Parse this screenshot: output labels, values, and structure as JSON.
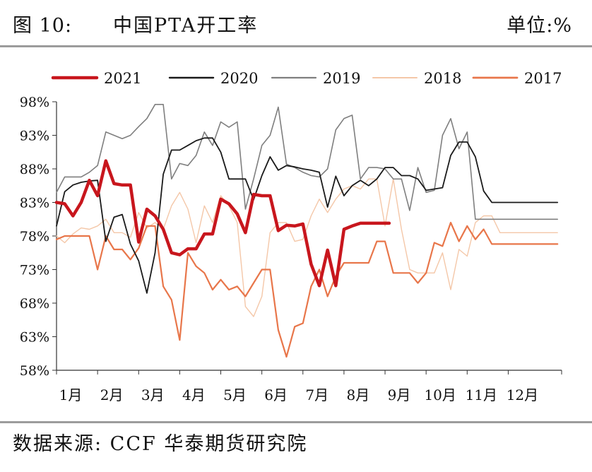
{
  "header": {
    "figure_no": "图 10:",
    "title": "中国PTA开工率",
    "unit": "单位:%"
  },
  "footer": {
    "source": "数据来源: CCF 华泰期货研究院"
  },
  "colors": {
    "2021": "#c8161d",
    "2020": "#1a1a1a",
    "2019": "#7f7f7f",
    "2018": "#f4c7a8",
    "2017": "#e8764a"
  },
  "chart_data": {
    "type": "line",
    "title": "中国PTA开工率",
    "ylabel": "",
    "xlabel": "",
    "ylim": [
      58,
      98
    ],
    "y_tick_labels": [
      "98%",
      "93%",
      "88%",
      "83%",
      "78%",
      "73%",
      "68%",
      "63%",
      "58%"
    ],
    "x_tick_labels": [
      "1月",
      "2月",
      "3月",
      "4月",
      "5月",
      "6月",
      "7月",
      "8月",
      "9月",
      "10月",
      "11月",
      "12月"
    ],
    "legend_position": "top",
    "grid": false,
    "x_domain": [
      1,
      13.3
    ],
    "series": [
      {
        "name": "2021",
        "x": [
          1.0,
          1.2,
          1.4,
          1.6,
          1.8,
          2.0,
          2.2,
          2.4,
          2.6,
          2.8,
          3.0,
          3.2,
          3.4,
          3.6,
          3.8,
          4.0,
          4.2,
          4.4,
          4.6,
          4.8,
          5.0,
          5.2,
          5.4,
          5.6,
          5.8,
          6.0,
          6.2,
          6.4,
          6.6,
          6.8,
          7.0,
          7.2,
          7.4,
          7.6,
          7.8,
          8.0,
          8.2,
          8.4,
          8.6,
          8.8,
          9.0,
          9.1
        ],
        "values": [
          83.0,
          82.8,
          81.0,
          83.0,
          86.3,
          84.0,
          89.2,
          85.8,
          85.6,
          85.6,
          77.1,
          82.0,
          81.0,
          79.0,
          75.5,
          75.2,
          76.1,
          76.1,
          78.3,
          78.3,
          83.5,
          82.8,
          81.3,
          78.5,
          84.2,
          84.0,
          84.0,
          78.8,
          79.6,
          79.5,
          79.8,
          73.8,
          70.6,
          75.9,
          70.6,
          79.0,
          79.5,
          79.9,
          79.9,
          79.9,
          79.9,
          79.9
        ]
      },
      {
        "name": "2020",
        "x": [
          1.0,
          1.2,
          1.4,
          1.6,
          1.8,
          2.0,
          2.2,
          2.4,
          2.6,
          2.8,
          3.0,
          3.2,
          3.4,
          3.6,
          3.8,
          4.0,
          4.2,
          4.4,
          4.6,
          4.8,
          5.0,
          5.2,
          5.4,
          5.6,
          5.8,
          6.0,
          6.2,
          6.4,
          6.6,
          6.8,
          7.0,
          7.2,
          7.4,
          7.6,
          7.8,
          8.0,
          8.2,
          8.4,
          8.6,
          8.8,
          9.0,
          9.2,
          9.4,
          9.6,
          9.8,
          10.0,
          10.2,
          10.4,
          10.6,
          10.8,
          11.0,
          11.2,
          11.4,
          11.6,
          11.8,
          12.0,
          12.2,
          12.4,
          12.6,
          12.8,
          13.0,
          13.2
        ],
        "values": [
          79.5,
          84.6,
          85.6,
          86.0,
          86.2,
          86.3,
          77.2,
          80.8,
          81.2,
          76.8,
          74.3,
          69.5,
          75.5,
          87.2,
          90.8,
          90.8,
          91.5,
          92.2,
          92.6,
          92.6,
          90.5,
          86.5,
          86.5,
          86.5,
          83.4,
          87.0,
          89.8,
          87.8,
          88.5,
          88.3,
          88.0,
          87.8,
          87.5,
          82.3,
          86.9,
          84.0,
          85.5,
          86.3,
          85.5,
          86.5,
          88.2,
          88.2,
          87.0,
          87.0,
          86.5,
          84.8,
          85.0,
          85.2,
          90.0,
          92.0,
          92.0,
          89.8,
          84.7,
          83.0,
          83.0,
          83.0,
          83.0,
          83.0,
          83.0,
          83.0,
          83.0,
          83.0
        ]
      },
      {
        "name": "2019",
        "x": [
          1.0,
          1.2,
          1.4,
          1.6,
          1.8,
          2.0,
          2.2,
          2.4,
          2.6,
          2.8,
          3.0,
          3.2,
          3.4,
          3.6,
          3.8,
          4.0,
          4.2,
          4.4,
          4.6,
          4.8,
          5.0,
          5.2,
          5.4,
          5.6,
          5.8,
          6.0,
          6.2,
          6.4,
          6.6,
          6.8,
          7.0,
          7.2,
          7.4,
          7.6,
          7.8,
          8.0,
          8.2,
          8.4,
          8.6,
          8.8,
          9.0,
          9.2,
          9.4,
          9.6,
          9.8,
          10.0,
          10.2,
          10.4,
          10.6,
          10.8,
          11.0,
          11.2,
          11.4,
          11.6,
          11.8,
          12.0,
          12.2,
          12.4,
          12.6,
          12.8,
          13.0,
          13.2
        ],
        "values": [
          84.5,
          86.8,
          86.8,
          86.8,
          87.5,
          88.5,
          93.5,
          93.0,
          92.5,
          93.0,
          94.3,
          95.5,
          97.6,
          97.6,
          86.5,
          88.8,
          88.5,
          90.0,
          93.5,
          91.5,
          95.0,
          94.2,
          95.0,
          82.0,
          86.5,
          91.5,
          93.0,
          97.2,
          88.7,
          88.2,
          87.5,
          87.0,
          86.8,
          88.0,
          93.8,
          95.5,
          96.0,
          86.5,
          88.2,
          88.2,
          88.0,
          86.5,
          86.5,
          81.8,
          88.2,
          84.5,
          84.8,
          93.0,
          95.5,
          91.0,
          93.5,
          80.5,
          80.5,
          80.5,
          80.5,
          80.5,
          80.5,
          80.5,
          80.5,
          80.5,
          80.5,
          80.5
        ]
      },
      {
        "name": "2018",
        "x": [
          1.0,
          1.2,
          1.4,
          1.6,
          1.8,
          2.0,
          2.2,
          2.4,
          2.6,
          2.8,
          3.0,
          3.2,
          3.4,
          3.6,
          3.8,
          4.0,
          4.2,
          4.4,
          4.6,
          4.8,
          5.0,
          5.2,
          5.4,
          5.6,
          5.8,
          6.0,
          6.2,
          6.4,
          6.6,
          6.8,
          7.0,
          7.2,
          7.4,
          7.6,
          7.8,
          8.0,
          8.2,
          8.4,
          8.6,
          8.8,
          9.0,
          9.2,
          9.4,
          9.6,
          9.8,
          10.0,
          10.2,
          10.4,
          10.6,
          10.8,
          11.0,
          11.2,
          11.4,
          11.6,
          11.8,
          12.0,
          12.2,
          12.4,
          12.6,
          12.8,
          13.0,
          13.2
        ],
        "values": [
          78.0,
          77.0,
          78.3,
          79.2,
          79.0,
          79.5,
          80.5,
          78.5,
          78.5,
          77.8,
          81.5,
          79.2,
          80.0,
          79.0,
          82.5,
          84.5,
          82.0,
          77.0,
          82.5,
          80.0,
          84.0,
          82.5,
          80.0,
          67.5,
          66.0,
          69.0,
          78.5,
          80.0,
          80.0,
          77.2,
          77.5,
          81.0,
          83.5,
          81.5,
          83.5,
          85.0,
          85.5,
          85.0,
          86.5,
          86.5,
          79.5,
          86.5,
          79.0,
          73.0,
          72.5,
          72.5,
          72.5,
          75.5,
          70.0,
          76.0,
          75.0,
          80.0,
          81.0,
          81.0,
          78.5,
          78.5,
          78.5,
          78.5,
          78.5,
          78.5,
          78.5,
          78.5
        ]
      },
      {
        "name": "2017",
        "x": [
          1.0,
          1.2,
          1.4,
          1.6,
          1.8,
          2.0,
          2.2,
          2.4,
          2.6,
          2.8,
          3.0,
          3.2,
          3.4,
          3.6,
          3.8,
          4.0,
          4.2,
          4.4,
          4.6,
          4.8,
          5.0,
          5.2,
          5.4,
          5.6,
          5.8,
          6.0,
          6.2,
          6.4,
          6.6,
          6.8,
          7.0,
          7.2,
          7.4,
          7.6,
          7.8,
          8.0,
          8.2,
          8.4,
          8.6,
          8.8,
          9.0,
          9.2,
          9.4,
          9.6,
          9.8,
          10.0,
          10.2,
          10.4,
          10.6,
          10.8,
          11.0,
          11.2,
          11.4,
          11.6,
          11.8,
          12.0,
          12.2,
          12.4,
          12.6,
          12.8,
          13.0,
          13.2
        ],
        "values": [
          77.5,
          78.0,
          78.0,
          78.0,
          78.0,
          73.0,
          78.0,
          76.0,
          76.0,
          74.5,
          76.2,
          79.5,
          79.5,
          70.5,
          68.5,
          62.5,
          75.5,
          73.5,
          72.5,
          70.0,
          71.5,
          70.0,
          70.5,
          69.0,
          71.0,
          73.0,
          73.0,
          64.0,
          60.0,
          64.5,
          65.0,
          70.5,
          73.0,
          69.0,
          72.0,
          74.0,
          74.0,
          74.0,
          74.0,
          77.2,
          77.2,
          72.5,
          72.5,
          72.5,
          71.0,
          72.5,
          77.0,
          76.5,
          80.0,
          77.2,
          79.5,
          77.5,
          79.0,
          76.8,
          76.8,
          76.8,
          76.8,
          76.8,
          76.8,
          76.8,
          76.8,
          76.8
        ]
      }
    ]
  }
}
